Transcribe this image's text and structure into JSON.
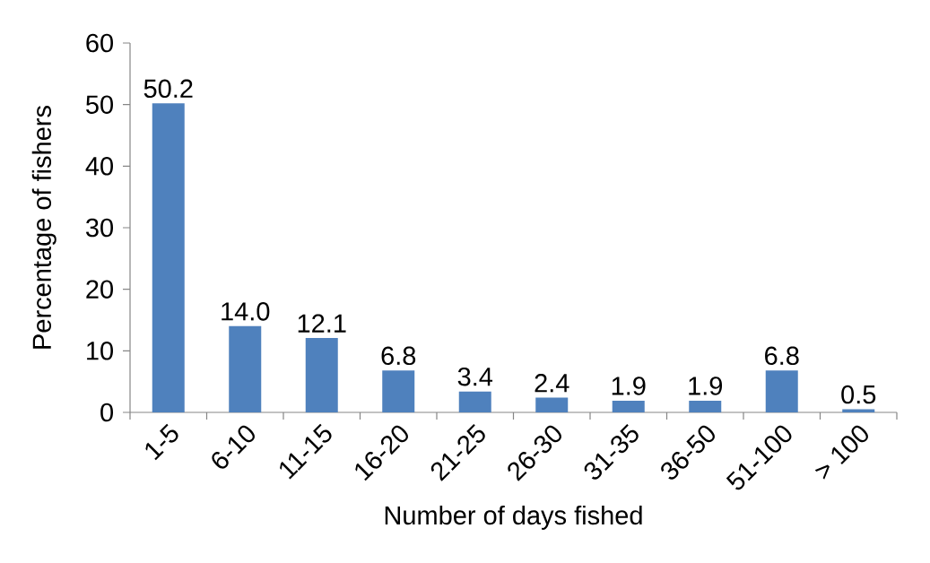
{
  "chart_data": {
    "type": "bar",
    "xlabel": "Number of days fished",
    "ylabel": "Percentage of fishers",
    "categories": [
      "1-5",
      "6-10",
      "11-15",
      "16-20",
      "21-25",
      "26-30",
      "31-35",
      "36-50",
      "51-100",
      "> 100"
    ],
    "values": [
      50.2,
      14.0,
      12.1,
      6.8,
      3.4,
      2.4,
      1.9,
      1.9,
      6.8,
      0.5
    ],
    "value_labels": [
      "50.2",
      "14.0",
      "12.1",
      "6.8",
      "3.4",
      "2.4",
      "1.9",
      "1.9",
      "6.8",
      "0.5"
    ],
    "color": "#4f81bd",
    "ylim": [
      0,
      60
    ],
    "yticks": [
      0,
      10,
      20,
      30,
      40,
      50,
      60
    ],
    "grid": false
  }
}
